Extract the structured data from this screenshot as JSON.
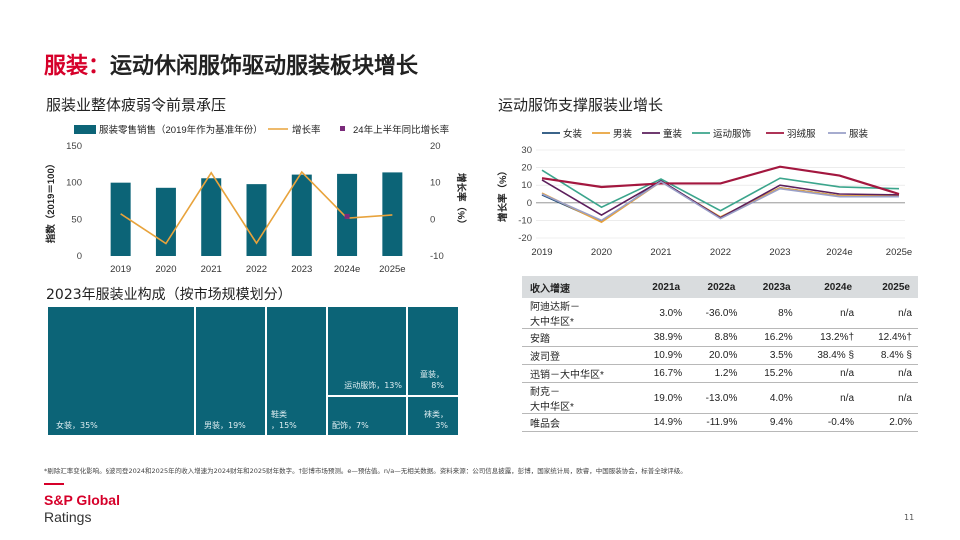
{
  "title": {
    "prefix": "服装：",
    "main": "运动休闲服饰驱动服装板块增长"
  },
  "left_chart_title": "服装业整体疲弱令前景承压",
  "right_chart_title": "运动服饰支撑服装业增长",
  "treemap_title": "2023年服装业构成（按市场规模划分）",
  "treemap": [
    {
      "label": "女装，35%",
      "value": 35
    },
    {
      "label": "男装，19%",
      "value": 19
    },
    {
      "label": "鞋类，15%",
      "value": 15
    },
    {
      "label": "运动服饰，13%",
      "value": 13
    },
    {
      "label": "童装，8%",
      "value": 8
    },
    {
      "label": "配饰，7%",
      "value": 7
    },
    {
      "label": "袜类，3%",
      "value": 3
    }
  ],
  "chart_data": [
    {
      "type": "bar",
      "title": "服装业整体疲弱令前景承压",
      "categories": [
        "2019",
        "2020",
        "2021",
        "2022",
        "2023",
        "2024e",
        "2025e"
      ],
      "series": [
        {
          "name": "服装零售销售（2019年作为基准年份）",
          "type": "bar",
          "axis": "left",
          "values": [
            100,
            93,
            106,
            98,
            111,
            112,
            114
          ]
        },
        {
          "name": "增长率",
          "type": "line",
          "axis": "right",
          "values": [
            1.5,
            -6.6,
            12.7,
            -6.5,
            12.9,
            0.3,
            1.2
          ]
        },
        {
          "name": "24年上半年同比增长率",
          "type": "marker",
          "axis": "right",
          "values": [
            null,
            null,
            null,
            null,
            null,
            0.8,
            null
          ]
        }
      ],
      "ylabel": "指数（2019＝100）",
      "y2label": "增长率（%）",
      "ylim": [
        0,
        150
      ],
      "yticks": [
        0,
        50,
        100,
        150
      ],
      "y2lim": [
        -10,
        20
      ],
      "y2ticks": [
        -10,
        0,
        10,
        20
      ],
      "legend": "top",
      "colors": {
        "bar": "#0c6477",
        "line": "#e8a33c",
        "marker": "#7a2a7a"
      }
    },
    {
      "type": "line",
      "title": "运动服饰支撑服装业增长",
      "categories": [
        "2019",
        "2020",
        "2021",
        "2022",
        "2023",
        "2024e",
        "2025e"
      ],
      "series": [
        {
          "name": "女装",
          "color": "#1f4e79",
          "values": [
            4.5,
            -10.5,
            12.5,
            -8.5,
            8.5,
            4,
            3.5
          ]
        },
        {
          "name": "男装",
          "color": "#e8a33c",
          "values": [
            5.5,
            -11,
            12,
            -8,
            8.5,
            4,
            4
          ]
        },
        {
          "name": "童装",
          "color": "#5c1f5c",
          "values": [
            13,
            -7,
            12.5,
            -8.5,
            10,
            5,
            4.5
          ]
        },
        {
          "name": "运动服饰",
          "color": "#3ba58c",
          "values": [
            18.5,
            -2.5,
            13.5,
            -4.5,
            14,
            9,
            8
          ]
        },
        {
          "name": "羽绒服",
          "color": "#a3173f",
          "values": [
            14,
            9,
            11,
            11,
            20.5,
            15.5,
            5
          ]
        },
        {
          "name": "服装",
          "color": "#9aa0c8",
          "values": [
            5,
            -10,
            12,
            -9,
            8,
            3.5,
            3.5
          ]
        }
      ],
      "ylabel": "增长率（%）",
      "ylim": [
        -20,
        30
      ],
      "yticks": [
        -20,
        -10,
        0,
        10,
        20,
        30
      ],
      "grid": true,
      "legend": "top"
    }
  ],
  "table": {
    "headers": [
      "收入增速",
      "2021a",
      "2022a",
      "2023a",
      "2024e",
      "2025e"
    ],
    "rows": [
      [
        "阿迪达斯－\n大中华区*",
        "3.0%",
        "-36.0%",
        "8%",
        "n/a",
        "n/a"
      ],
      [
        "安踏",
        "38.9%",
        "8.8%",
        "16.2%",
        "13.2%†",
        "12.4%†"
      ],
      [
        "波司登",
        "10.9%",
        "20.0%",
        "3.5%",
        "38.4% §",
        "8.4% §"
      ],
      [
        "迅销－大中华区*",
        "16.7%",
        "1.2%",
        "15.2%",
        "n/a",
        "n/a"
      ],
      [
        "耐克－\n大中华区*",
        "19.0%",
        "-13.0%",
        "4.0%",
        "n/a",
        "n/a"
      ],
      [
        "唯品会",
        "14.9%",
        "-11.9%",
        "9.4%",
        "-0.4%",
        "2.0%"
      ]
    ]
  },
  "footnote": "*剔除汇率变化影响。§波司登2024和2025年的收入增速为2024财年和2025财年数字。†彭博市场预测。e—预估值。n/a—无相关数据。资料来源：公司信息披露，彭博，国家统计局，欧睿，中国服装协会，标普全球评级。",
  "logo": {
    "line1": "S&P Global",
    "line2": "Ratings"
  },
  "page_number": "11"
}
